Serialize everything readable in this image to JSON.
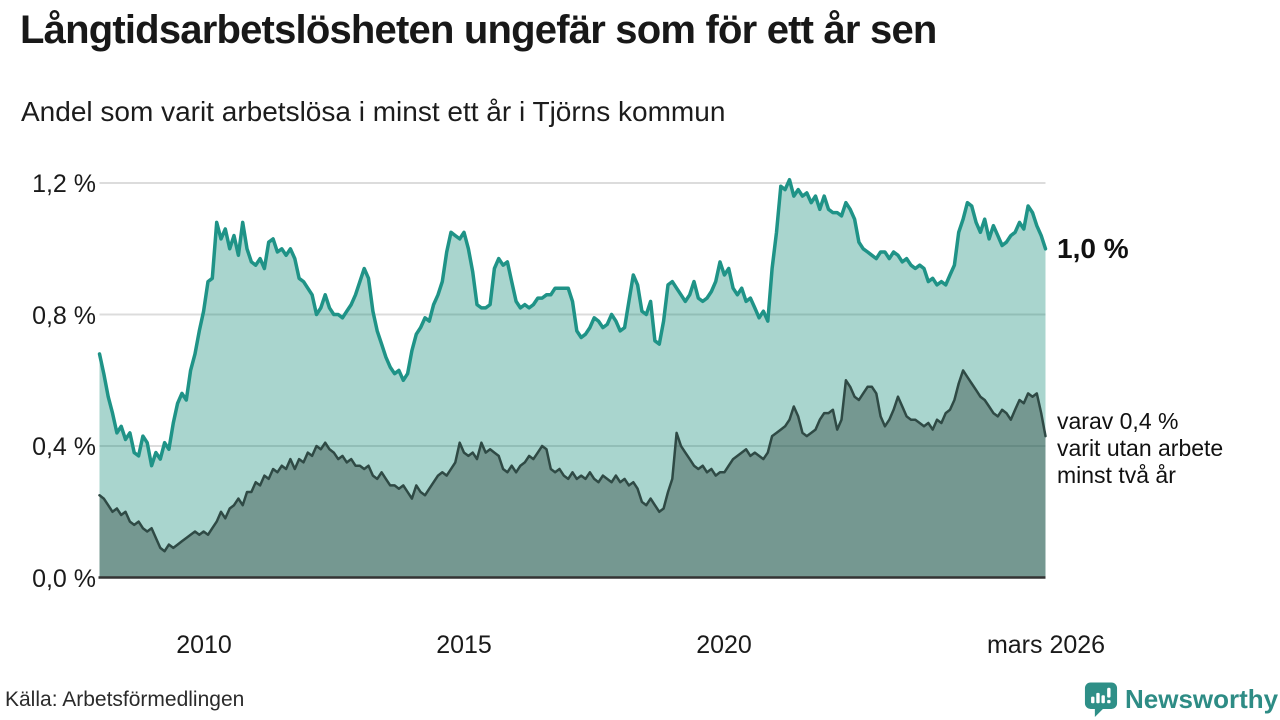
{
  "header": {
    "title": "Långtidsarbetslösheten ungefär som för ett år sen",
    "subtitle": "Andel som varit arbetslösa i minst ett år i Tjörns kommun"
  },
  "annotations": {
    "latest_total": "1,0 %",
    "latest_two_year": [
      "varav 0,4 %",
      "varit utan arbete",
      "minst två år"
    ]
  },
  "footer": {
    "source": "Källa: Arbetsförmedlingen",
    "brand": "Newsworthy"
  },
  "colors": {
    "accent_teal": "#1f9387",
    "light_area_fill": "#a9d5ce",
    "dark_line": "#2f4a45",
    "dark_area_fill": "#729a93",
    "grid": "#dcdcdc",
    "axis": "#333333",
    "text": "#1a1a1a",
    "brand_teal": "#2e8c85"
  },
  "chart_data": {
    "type": "area",
    "title": "Långtidsarbetslösheten ungefär som för ett år sen",
    "subtitle": "Andel som varit arbetslösa i minst ett år i Tjörns kommun",
    "source": "Källa: Arbetsförmedlingen",
    "unit": "%",
    "frequency": "monthly",
    "x_start": 2008,
    "x_end_label": "mars 2026",
    "ylim": [
      0,
      1.2
    ],
    "grid": true,
    "grid_color": "#dcdcdc",
    "axis_color": "#333333",
    "y_ticks": [
      {
        "value": 1.2,
        "label": "1,2 %"
      },
      {
        "value": 0.8,
        "label": "0,8 %"
      },
      {
        "value": 0.4,
        "label": "0,4 %"
      },
      {
        "value": 0.0,
        "label": "0,0 %"
      }
    ],
    "x_ticks": [
      {
        "x": 2010.0,
        "label": "2010"
      },
      {
        "x": 2015.0,
        "label": "2015"
      },
      {
        "x": 2020.0,
        "label": "2020"
      },
      {
        "x": 2026.1667,
        "label": "mars 2026"
      }
    ],
    "series": [
      {
        "name": "Andel arbetslösa minst ett år",
        "end_label": "1,0 %",
        "stroke": "#1f9387",
        "stroke_width": 3.5,
        "fill": "rgba(18,138,120,0.36)",
        "values": [
          0.68,
          0.62,
          0.55,
          0.5,
          0.44,
          0.46,
          0.42,
          0.44,
          0.38,
          0.37,
          0.43,
          0.41,
          0.34,
          0.38,
          0.36,
          0.41,
          0.39,
          0.47,
          0.53,
          0.56,
          0.54,
          0.63,
          0.68,
          0.75,
          0.81,
          0.9,
          0.91,
          1.08,
          1.03,
          1.06,
          1.0,
          1.04,
          0.98,
          1.08,
          1.0,
          0.96,
          0.95,
          0.97,
          0.94,
          1.02,
          1.03,
          0.99,
          1.0,
          0.98,
          1.0,
          0.97,
          0.91,
          0.9,
          0.88,
          0.86,
          0.8,
          0.82,
          0.86,
          0.82,
          0.8,
          0.8,
          0.79,
          0.81,
          0.83,
          0.86,
          0.9,
          0.94,
          0.91,
          0.81,
          0.75,
          0.71,
          0.67,
          0.64,
          0.62,
          0.63,
          0.6,
          0.62,
          0.69,
          0.74,
          0.76,
          0.79,
          0.78,
          0.83,
          0.86,
          0.9,
          0.99,
          1.05,
          1.04,
          1.03,
          1.05,
          1.0,
          0.93,
          0.83,
          0.82,
          0.82,
          0.83,
          0.94,
          0.97,
          0.95,
          0.96,
          0.9,
          0.84,
          0.82,
          0.83,
          0.82,
          0.83,
          0.85,
          0.85,
          0.86,
          0.86,
          0.88,
          0.88,
          0.88,
          0.88,
          0.84,
          0.75,
          0.73,
          0.74,
          0.76,
          0.79,
          0.78,
          0.76,
          0.77,
          0.8,
          0.78,
          0.75,
          0.76,
          0.84,
          0.92,
          0.89,
          0.81,
          0.8,
          0.84,
          0.72,
          0.71,
          0.78,
          0.89,
          0.9,
          0.88,
          0.86,
          0.84,
          0.86,
          0.9,
          0.85,
          0.84,
          0.85,
          0.87,
          0.9,
          0.96,
          0.92,
          0.94,
          0.88,
          0.86,
          0.88,
          0.84,
          0.85,
          0.82,
          0.79,
          0.81,
          0.78,
          0.94,
          1.05,
          1.19,
          1.18,
          1.21,
          1.16,
          1.18,
          1.16,
          1.17,
          1.14,
          1.16,
          1.12,
          1.16,
          1.12,
          1.11,
          1.11,
          1.1,
          1.14,
          1.12,
          1.09,
          1.02,
          1.0,
          0.99,
          0.98,
          0.97,
          0.99,
          0.99,
          0.97,
          0.99,
          0.98,
          0.96,
          0.97,
          0.95,
          0.94,
          0.95,
          0.94,
          0.9,
          0.91,
          0.89,
          0.9,
          0.89,
          0.92,
          0.95,
          1.05,
          1.09,
          1.14,
          1.13,
          1.08,
          1.05,
          1.09,
          1.03,
          1.07,
          1.04,
          1.01,
          1.02,
          1.04,
          1.05,
          1.08,
          1.06,
          1.13,
          1.11,
          1.07,
          1.04,
          1.0
        ]
      },
      {
        "name": "varav utan arbete minst två år",
        "end_label": "varav 0,4 % varit utan arbete minst två år",
        "stroke": "#2f4a45",
        "stroke_width": 2.5,
        "fill": "rgba(45,70,62,0.42)",
        "values": [
          0.25,
          0.24,
          0.22,
          0.2,
          0.21,
          0.19,
          0.2,
          0.17,
          0.16,
          0.17,
          0.15,
          0.14,
          0.15,
          0.12,
          0.09,
          0.08,
          0.1,
          0.09,
          0.1,
          0.11,
          0.12,
          0.13,
          0.14,
          0.13,
          0.14,
          0.13,
          0.15,
          0.17,
          0.2,
          0.18,
          0.21,
          0.22,
          0.24,
          0.22,
          0.26,
          0.26,
          0.29,
          0.28,
          0.31,
          0.3,
          0.33,
          0.32,
          0.34,
          0.33,
          0.36,
          0.33,
          0.36,
          0.35,
          0.38,
          0.37,
          0.4,
          0.39,
          0.41,
          0.39,
          0.38,
          0.36,
          0.37,
          0.35,
          0.36,
          0.34,
          0.34,
          0.33,
          0.34,
          0.31,
          0.3,
          0.32,
          0.3,
          0.28,
          0.28,
          0.27,
          0.28,
          0.26,
          0.24,
          0.28,
          0.26,
          0.25,
          0.27,
          0.29,
          0.31,
          0.32,
          0.31,
          0.33,
          0.35,
          0.41,
          0.38,
          0.37,
          0.38,
          0.36,
          0.41,
          0.38,
          0.39,
          0.38,
          0.37,
          0.33,
          0.32,
          0.34,
          0.32,
          0.34,
          0.35,
          0.37,
          0.36,
          0.38,
          0.4,
          0.39,
          0.33,
          0.32,
          0.33,
          0.31,
          0.3,
          0.32,
          0.3,
          0.31,
          0.3,
          0.32,
          0.3,
          0.29,
          0.31,
          0.3,
          0.29,
          0.31,
          0.29,
          0.3,
          0.28,
          0.29,
          0.27,
          0.23,
          0.22,
          0.24,
          0.22,
          0.2,
          0.21,
          0.26,
          0.3,
          0.44,
          0.4,
          0.38,
          0.36,
          0.34,
          0.33,
          0.34,
          0.32,
          0.33,
          0.31,
          0.32,
          0.32,
          0.34,
          0.36,
          0.37,
          0.38,
          0.39,
          0.37,
          0.38,
          0.37,
          0.36,
          0.38,
          0.43,
          0.44,
          0.45,
          0.46,
          0.48,
          0.52,
          0.49,
          0.44,
          0.43,
          0.44,
          0.45,
          0.48,
          0.5,
          0.5,
          0.51,
          0.45,
          0.48,
          0.6,
          0.58,
          0.55,
          0.54,
          0.56,
          0.58,
          0.58,
          0.56,
          0.49,
          0.46,
          0.48,
          0.51,
          0.55,
          0.52,
          0.49,
          0.48,
          0.48,
          0.47,
          0.46,
          0.47,
          0.45,
          0.48,
          0.47,
          0.5,
          0.51,
          0.54,
          0.59,
          0.63,
          0.61,
          0.59,
          0.57,
          0.55,
          0.54,
          0.52,
          0.5,
          0.49,
          0.51,
          0.5,
          0.48,
          0.51,
          0.54,
          0.53,
          0.56,
          0.55,
          0.56,
          0.5,
          0.43
        ]
      }
    ]
  }
}
